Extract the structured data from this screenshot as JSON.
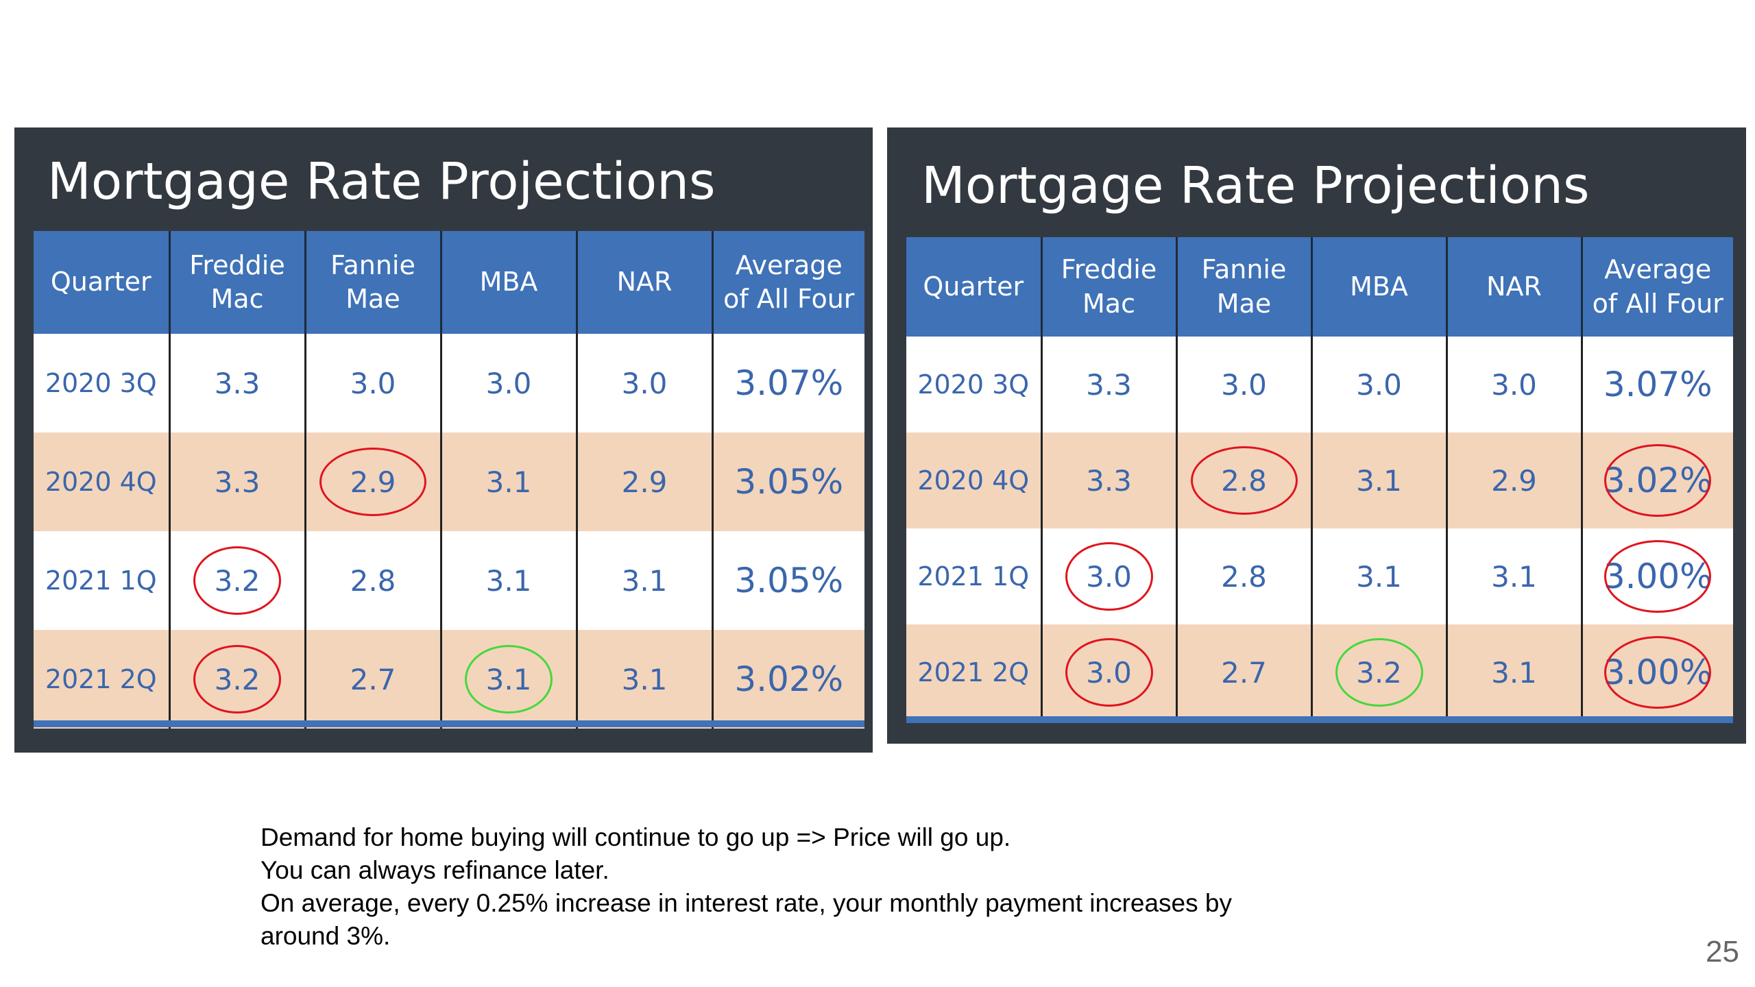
{
  "left_panel": {
    "title": "Mortgage Rate Projections",
    "headers": [
      "Quarter",
      "Freddie\nMac",
      "Fannie\nMae",
      "MBA",
      "NAR",
      "Average\nof All Four"
    ],
    "rows": [
      {
        "quarter": "2020 3Q",
        "freddie": "3.3",
        "fannie": "3.0",
        "mba": "3.0",
        "nar": "3.0",
        "avg": "3.07%"
      },
      {
        "quarter": "2020 4Q",
        "freddie": "3.3",
        "fannie": "2.9",
        "mba": "3.1",
        "nar": "2.9",
        "avg": "3.05%"
      },
      {
        "quarter": "2021 1Q",
        "freddie": "3.2",
        "fannie": "2.8",
        "mba": "3.1",
        "nar": "3.1",
        "avg": "3.05%"
      },
      {
        "quarter": "2021 2Q",
        "freddie": "3.2",
        "fannie": "2.7",
        "mba": "3.1",
        "nar": "3.1",
        "avg": "3.02%"
      }
    ],
    "circle_colors": {
      "red": "#e0141e",
      "green": "#45d83c"
    }
  },
  "right_panel": {
    "title": "Mortgage Rate Projections",
    "headers": [
      "Quarter",
      "Freddie\nMac",
      "Fannie\nMae",
      "MBA",
      "NAR",
      "Average\nof All Four"
    ],
    "rows": [
      {
        "quarter": "2020 3Q",
        "freddie": "3.3",
        "fannie": "3.0",
        "mba": "3.0",
        "nar": "3.0",
        "avg": "3.07%"
      },
      {
        "quarter": "2020 4Q",
        "freddie": "3.3",
        "fannie": "2.8",
        "mba": "3.1",
        "nar": "2.9",
        "avg": "3.02%"
      },
      {
        "quarter": "2021 1Q",
        "freddie": "3.0",
        "fannie": "2.8",
        "mba": "3.1",
        "nar": "3.1",
        "avg": "3.00%"
      },
      {
        "quarter": "2021 2Q",
        "freddie": "3.0",
        "fannie": "2.7",
        "mba": "3.2",
        "nar": "3.1",
        "avg": "3.00%"
      }
    ]
  },
  "notes": [
    "Demand for home buying will continue to go up => Price will go up.",
    "You can always refinance later.",
    "On average, every 0.25% increase in interest rate, your monthly payment increases by",
    "around 3%."
  ],
  "slide_number": "25",
  "colors": {
    "header_blue": "#3f72b7",
    "row_peach": "#f3d5bc",
    "panel_dark": "#333940",
    "value_blue": "#3a66ac"
  }
}
